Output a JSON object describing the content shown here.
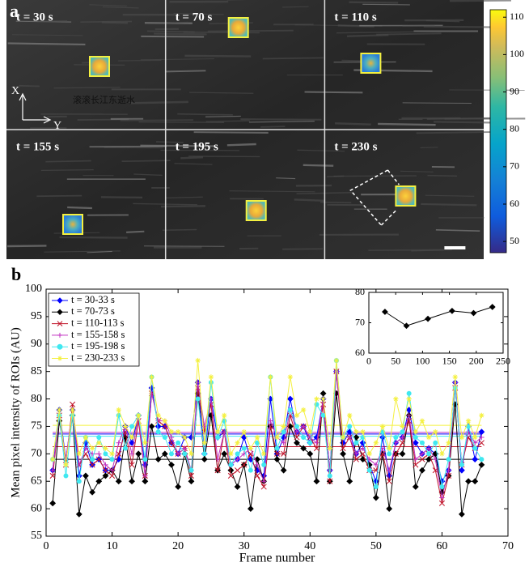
{
  "panel_a": {
    "label": "a",
    "frames": [
      "t = 30 s",
      "t = 70 s",
      "t = 110 s",
      "t = 155 s",
      "t = 195 s",
      "t = 230 s"
    ],
    "axis_x": "X",
    "axis_y": "Y",
    "watermark": "滚滚长江东逝水",
    "colorbar": {
      "lim": [
        47,
        112
      ],
      "ticks": [
        50,
        60,
        70,
        80,
        90,
        100,
        110
      ]
    }
  },
  "chart_data": [
    {
      "type": "line",
      "label": "b",
      "xlabel": "Frame number",
      "ylabel": "Mean pixel intensity of ROIs (AU)",
      "xlim": [
        0,
        70
      ],
      "xticks": [
        0,
        10,
        20,
        30,
        40,
        50,
        60,
        70
      ],
      "ylim": [
        55,
        100
      ],
      "yticks": [
        55,
        60,
        65,
        70,
        75,
        80,
        85,
        90,
        95,
        100
      ],
      "legend": "upper left",
      "x": [
        1,
        2,
        3,
        4,
        5,
        6,
        7,
        8,
        9,
        10,
        11,
        12,
        13,
        14,
        15,
        16,
        17,
        18,
        19,
        20,
        21,
        22,
        23,
        24,
        25,
        26,
        27,
        28,
        29,
        30,
        31,
        32,
        33,
        34,
        35,
        36,
        37,
        38,
        39,
        40,
        41,
        42,
        43,
        44,
        45,
        46,
        47,
        48,
        49,
        50,
        51,
        52,
        53,
        54,
        55,
        56,
        57,
        58,
        59,
        60,
        61,
        62,
        63,
        64,
        65,
        66
      ],
      "series": [
        {
          "name": "t = 30-33 s",
          "color": "#0000ff",
          "marker": "diamond",
          "values": [
            67,
            78,
            69,
            78,
            66,
            72,
            68,
            69,
            67,
            67,
            69,
            75,
            72,
            77,
            68,
            82,
            75,
            75,
            72,
            70,
            73,
            73,
            83,
            70,
            80,
            73,
            74,
            68,
            69,
            73,
            69,
            67,
            66,
            80,
            70,
            73,
            80,
            74,
            75,
            72,
            73,
            80,
            67,
            85,
            72,
            74,
            70,
            72,
            68,
            65,
            73,
            66,
            72,
            73,
            78,
            72,
            70,
            71,
            70,
            65,
            67,
            83,
            67,
            75,
            69,
            74
          ]
        },
        {
          "name": "t = 70-73 s",
          "color": "#000000",
          "marker": "diamond",
          "values": [
            61,
            76,
            69,
            77,
            59,
            66,
            63,
            65,
            66,
            67,
            65,
            73,
            65,
            70,
            65,
            75,
            69,
            70,
            68,
            64,
            70,
            65,
            81,
            69,
            77,
            67,
            70,
            67,
            64,
            68,
            60,
            69,
            65,
            75,
            69,
            67,
            75,
            72,
            71,
            70,
            65,
            81,
            65,
            81,
            70,
            65,
            73,
            69,
            68,
            62,
            70,
            60,
            70,
            70,
            77,
            64,
            67,
            69,
            70,
            63,
            66,
            79,
            59,
            65,
            65,
            68
          ]
        },
        {
          "name": "t = 110-113 s",
          "color": "#c0142a",
          "marker": "x",
          "values": [
            66,
            77,
            68,
            79,
            68,
            70,
            68,
            69,
            67,
            66,
            70,
            74,
            68,
            76,
            66,
            81,
            76,
            75,
            72,
            70,
            71,
            66,
            82,
            74,
            79,
            67,
            74,
            66,
            67,
            68,
            70,
            66,
            64,
            75,
            70,
            70,
            77,
            73,
            75,
            73,
            71,
            79,
            65,
            85,
            71,
            73,
            69,
            70,
            67,
            67,
            70,
            65,
            70,
            72,
            76,
            68,
            69,
            70,
            67,
            61,
            66,
            82,
            68,
            73,
            71,
            72
          ]
        },
        {
          "name": "t = 155-158 s",
          "color": "#c030c0",
          "marker": "plus",
          "values": [
            67,
            77,
            69,
            78,
            68,
            71,
            70,
            70,
            68,
            67,
            72,
            75,
            70,
            77,
            66,
            81,
            76,
            76,
            73,
            70,
            71,
            67,
            83,
            75,
            80,
            69,
            74,
            68,
            69,
            70,
            71,
            68,
            65,
            76,
            73,
            72,
            78,
            74,
            75,
            73,
            72,
            80,
            67,
            85,
            73,
            73,
            70,
            71,
            69,
            68,
            71,
            67,
            72,
            73,
            77,
            69,
            70,
            71,
            69,
            62,
            67,
            83,
            68,
            74,
            72,
            73
          ]
        },
        {
          "name": "t = 195-198 s",
          "color": "#40e8f0",
          "marker": "circle",
          "values": [
            69,
            77,
            66,
            77,
            65,
            73,
            69,
            73,
            70,
            69,
            77,
            71,
            75,
            77,
            69,
            84,
            74,
            73,
            70,
            72,
            70,
            67,
            80,
            70,
            83,
            73,
            76,
            68,
            70,
            71,
            67,
            72,
            68,
            84,
            71,
            74,
            78,
            75,
            73,
            72,
            79,
            77,
            66,
            87,
            73,
            75,
            72,
            73,
            67,
            64,
            74,
            70,
            73,
            74,
            81,
            73,
            72,
            70,
            72,
            64,
            69,
            82,
            68,
            75,
            71,
            69
          ]
        },
        {
          "name": "t = 230-233 s",
          "color": "#f4f040",
          "marker": "star",
          "values": [
            69,
            78,
            68,
            78,
            70,
            73,
            71,
            72,
            71,
            70,
            78,
            75,
            73,
            77,
            72,
            84,
            77,
            76,
            74,
            74,
            73,
            70,
            87,
            72,
            84,
            74,
            77,
            70,
            72,
            74,
            71,
            73,
            70,
            84,
            73,
            75,
            84,
            77,
            78,
            74,
            80,
            80,
            71,
            87,
            73,
            77,
            74,
            74,
            70,
            72,
            75,
            71,
            80,
            75,
            80,
            74,
            76,
            73,
            74,
            70,
            72,
            84,
            73,
            76,
            73,
            77
          ]
        }
      ]
    },
    {
      "type": "line",
      "color": "#000000",
      "x": [
        30,
        70,
        110,
        155,
        195,
        230
      ],
      "values": [
        73.6,
        69,
        71.3,
        73.9,
        73.2,
        75.2
      ],
      "xlim": [
        0,
        250
      ],
      "xticks": [
        0,
        50,
        100,
        150,
        200,
        250
      ],
      "ylim": [
        60,
        80
      ],
      "yticks": [
        60,
        70,
        80
      ]
    }
  ]
}
